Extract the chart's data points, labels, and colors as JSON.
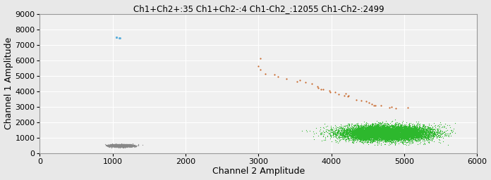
{
  "title": "Ch1+Ch2+:35 Ch1+Ch2-:4 Ch1-Ch2_:12055 Ch1-Ch2-:2499",
  "xlabel": "Channel 2 Amplitude",
  "ylabel": "Channel 1 Amplitude",
  "xlim": [
    0,
    6000
  ],
  "ylim": [
    0,
    9000
  ],
  "xticks": [
    0,
    1000,
    2000,
    3000,
    4000,
    5000,
    6000
  ],
  "yticks": [
    0,
    1000,
    2000,
    3000,
    4000,
    5000,
    6000,
    7000,
    8000,
    9000
  ],
  "background_color": "#e8e8e8",
  "plot_bg_color": "#f0f0f0",
  "title_fontsize": 8.5,
  "axis_label_fontsize": 9,
  "tick_labelsize": 8,
  "seed": 42,
  "clusters": {
    "blue": {
      "color": "#5aaedc",
      "n": 4,
      "x_center": 1090,
      "x_std": 35,
      "y_center": 7480,
      "y_std": 50,
      "marker": ".",
      "size": 18
    },
    "orange": {
      "color": "#c8682b",
      "n": 35,
      "x_center_line": [
        [
          3000,
          6100
        ],
        [
          3020,
          5580
        ],
        [
          3050,
          5500
        ],
        [
          3100,
          5100
        ],
        [
          3200,
          5050
        ],
        [
          3300,
          4960
        ],
        [
          3400,
          4800
        ],
        [
          3500,
          4700
        ],
        [
          3560,
          4650
        ],
        [
          3620,
          4550
        ],
        [
          3700,
          4420
        ],
        [
          3750,
          4350
        ],
        [
          3800,
          4280
        ],
        [
          3850,
          4200
        ],
        [
          3900,
          4120
        ],
        [
          3950,
          4050
        ],
        [
          4000,
          3980
        ],
        [
          4050,
          3900
        ],
        [
          4100,
          3850
        ],
        [
          4150,
          3800
        ],
        [
          4200,
          3750
        ],
        [
          4250,
          3680
        ],
        [
          4300,
          3600
        ],
        [
          4350,
          3500
        ],
        [
          4400,
          3400
        ],
        [
          4450,
          3310
        ],
        [
          4500,
          3220
        ],
        [
          4550,
          3150
        ],
        [
          4600,
          3080
        ],
        [
          4650,
          3000
        ],
        [
          4700,
          3050
        ],
        [
          4760,
          3010
        ],
        [
          4820,
          2960
        ],
        [
          4900,
          2940
        ],
        [
          5000,
          2930
        ]
      ],
      "x_std": 30,
      "y_std": 40,
      "marker": ".",
      "size": 10
    },
    "green": {
      "color": "#2db82d",
      "n": 12055,
      "x_center": 4750,
      "x_std": 300,
      "y_center": 1300,
      "y_std": 230,
      "x_min": 3100,
      "x_max": 5700,
      "y_min": 500,
      "y_max": 2200,
      "marker": ".",
      "size": 3
    },
    "gray": {
      "color": "#888888",
      "n": 2499,
      "x_center": 1100,
      "x_std": 80,
      "y_center": 490,
      "y_std": 40,
      "x_min": 900,
      "x_max": 1900,
      "y_min": 300,
      "y_max": 700,
      "marker": ".",
      "size": 3
    }
  }
}
